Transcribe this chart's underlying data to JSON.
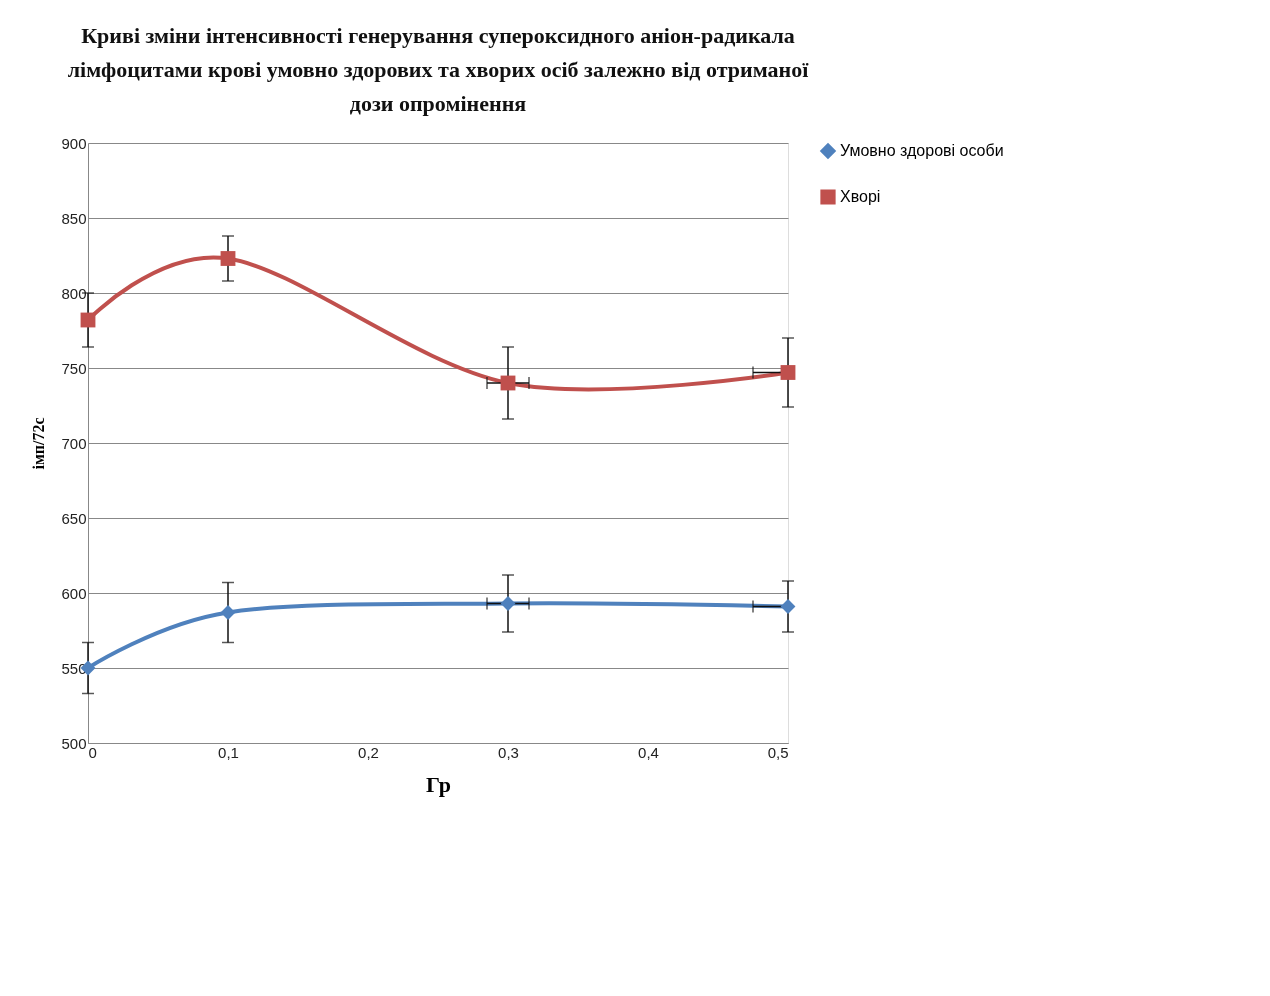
{
  "chart_data": {
    "type": "line",
    "title": [
      "Криві зміни інтенсивності генерування супероксидного аніон-радикала",
      "лімфоцитами крові умовно здорових та хворих осіб залежно від отриманої",
      "дози опромінення"
    ],
    "xlabel": "Гр",
    "ylabel": "імп/72с",
    "x": [
      0,
      0.1,
      0.3,
      0.5
    ],
    "series": [
      {
        "name": "Умовно здорові особи",
        "color": "#4f81bd",
        "marker": "diamond",
        "values": [
          550,
          587,
          593,
          591
        ],
        "errors": [
          17,
          20,
          19,
          17
        ],
        "xerrors": [
          null,
          null,
          [
            0.285,
            0.315
          ],
          [
            0.475,
            0.5
          ]
        ]
      },
      {
        "name": "Хворі",
        "color": "#c0504d",
        "marker": "square",
        "values": [
          782,
          823,
          740,
          747
        ],
        "errors": [
          18,
          15,
          24,
          23
        ],
        "xerrors": [
          null,
          null,
          [
            0.285,
            0.315
          ],
          [
            0.475,
            0.5
          ]
        ]
      }
    ],
    "xlim": [
      0,
      0.5
    ],
    "xticks": [
      {
        "value": 0,
        "label": "0"
      },
      {
        "value": 0.1,
        "label": "0,1"
      },
      {
        "value": 0.2,
        "label": "0,2"
      },
      {
        "value": 0.3,
        "label": "0,3"
      },
      {
        "value": 0.4,
        "label": "0,4"
      },
      {
        "value": 0.5,
        "label": "0,5"
      }
    ],
    "ylim": [
      500,
      900
    ],
    "yticks": [
      500,
      550,
      600,
      650,
      700,
      750,
      800,
      850,
      900
    ],
    "grid": "y",
    "legend": "right",
    "line_style": "solid"
  }
}
